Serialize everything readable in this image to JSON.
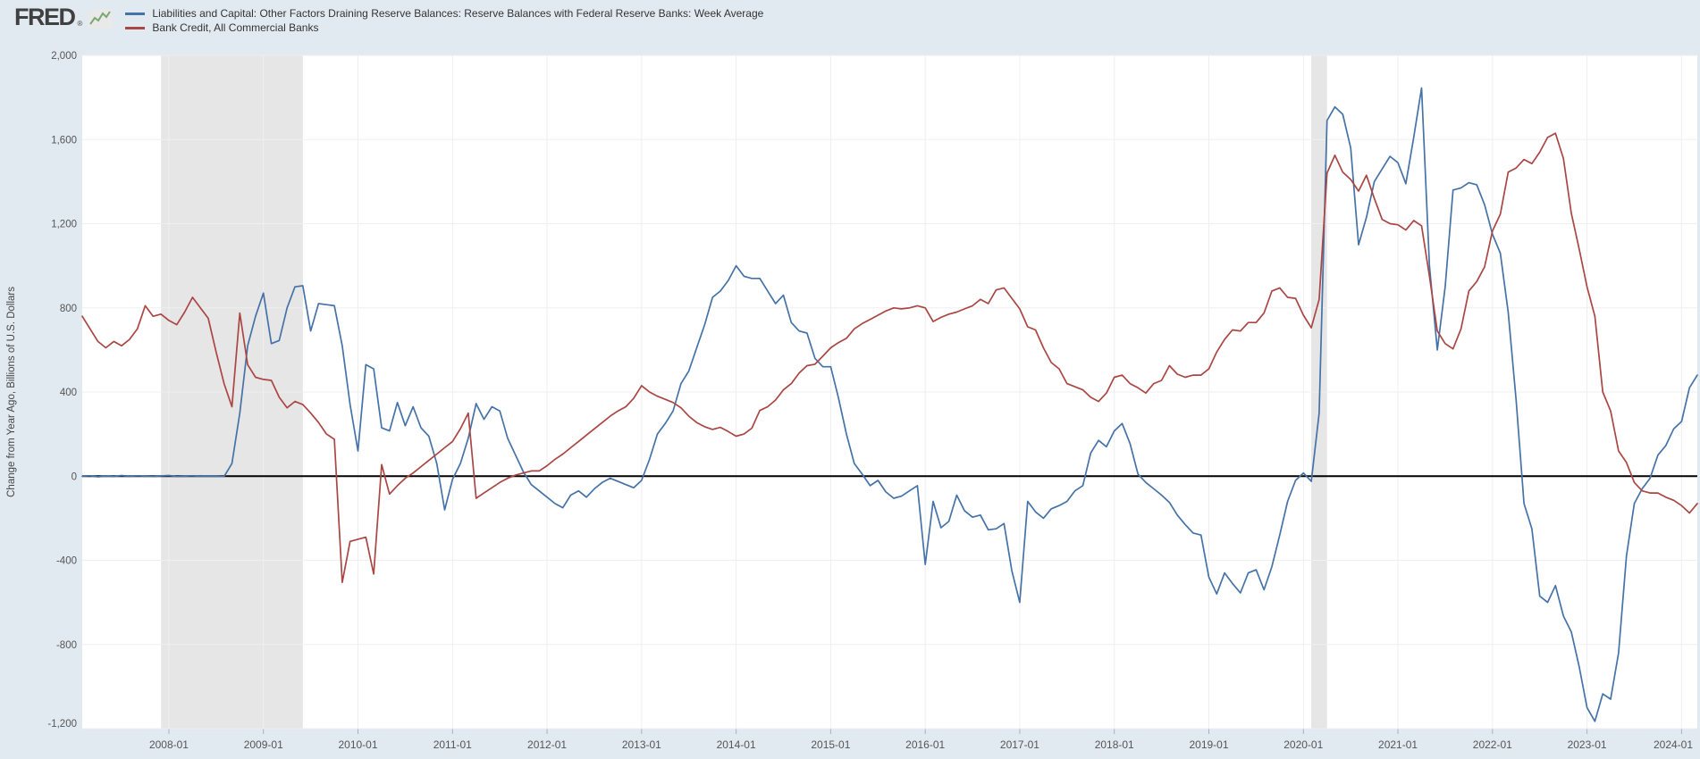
{
  "header": {
    "logo_text": "FRED",
    "registered_mark": "®"
  },
  "colors": {
    "background": "#e2eaf1",
    "plot_background": "#ffffff",
    "recession_band": "#e6e6e6",
    "gridline": "#efefef",
    "zero_line": "#000000",
    "tick_mark": "#a8b1ba",
    "tick_label": "#555555",
    "axis_title": "#444444",
    "legend_text": "#333333",
    "logo_text": "#404040",
    "sparkline_green": "#7aa874",
    "series_blue": "#4572a7",
    "series_red": "#aa4643"
  },
  "chart_data": {
    "type": "line",
    "title": "",
    "xlabel": "",
    "ylabel": "Change from Year Ago, Billions of U.S. Dollars",
    "ylim": [
      -1200,
      2000
    ],
    "grid": true,
    "legend_position": "top-left",
    "y_ticks": [
      {
        "v": 2000,
        "label": "2,000"
      },
      {
        "v": 1600,
        "label": "1,600"
      },
      {
        "v": 1200,
        "label": "1,200"
      },
      {
        "v": 800,
        "label": "800"
      },
      {
        "v": 400,
        "label": "400"
      },
      {
        "v": 0,
        "label": "0"
      },
      {
        "v": -400,
        "label": "-400"
      },
      {
        "v": -800,
        "label": "-800"
      },
      {
        "v": -1200,
        "label": "-1,200"
      }
    ],
    "x_ticks": [
      "2008-01",
      "2009-01",
      "2010-01",
      "2011-01",
      "2012-01",
      "2013-01",
      "2014-01",
      "2015-01",
      "2016-01",
      "2017-01",
      "2018-01",
      "2019-01",
      "2020-01",
      "2021-01",
      "2022-01",
      "2023-01",
      "2024-01"
    ],
    "x_start": "2007-02",
    "x_end": "2024-03",
    "x_resolution": "monthly",
    "recession_bands": [
      {
        "start": "2007-12",
        "end": "2009-06"
      },
      {
        "start": "2020-02",
        "end": "2020-04"
      }
    ],
    "series": [
      {
        "name": "Liabilities and Capital: Other Factors Draining Reserve Balances: Reserve Balances with Federal Reserve Banks: Week Average",
        "color": "#4572a7",
        "values": [
          0,
          2,
          -3,
          1,
          -2,
          3,
          -1,
          2,
          0,
          -2,
          1,
          3,
          -2,
          0,
          2,
          -1,
          1,
          0,
          -2,
          60,
          300,
          620,
          760,
          870,
          630,
          645,
          800,
          900,
          905,
          690,
          820,
          815,
          810,
          620,
          340,
          120,
          530,
          510,
          230,
          215,
          350,
          240,
          330,
          230,
          190,
          60,
          -160,
          -15,
          60,
          180,
          345,
          270,
          330,
          310,
          180,
          100,
          20,
          -40,
          -70,
          -100,
          -130,
          -150,
          -90,
          -70,
          -100,
          -60,
          -30,
          -10,
          -25,
          -40,
          -55,
          -20,
          80,
          200,
          250,
          310,
          440,
          500,
          610,
          720,
          850,
          880,
          930,
          1000,
          950,
          940,
          940,
          880,
          820,
          860,
          730,
          690,
          680,
          560,
          520,
          520,
          370,
          200,
          60,
          10,
          -45,
          -20,
          -75,
          -105,
          -95,
          -70,
          -45,
          -420,
          -120,
          -245,
          -215,
          -90,
          -165,
          -195,
          -185,
          -255,
          -250,
          -225,
          -450,
          -600,
          -120,
          -170,
          -200,
          -155,
          -140,
          -120,
          -70,
          -45,
          110,
          170,
          140,
          215,
          250,
          155,
          10,
          -30,
          -60,
          -90,
          -125,
          -185,
          -230,
          -270,
          -280,
          -480,
          -560,
          -460,
          -510,
          -555,
          -460,
          -445,
          -540,
          -430,
          -280,
          -120,
          -20,
          15,
          -25,
          300,
          1690,
          1755,
          1720,
          1560,
          1100,
          1230,
          1400,
          1460,
          1520,
          1490,
          1390,
          1610,
          1845,
          1000,
          600,
          900,
          1360,
          1370,
          1395,
          1385,
          1290,
          1150,
          1060,
          780,
          360,
          -130,
          -250,
          -570,
          -600,
          -520,
          -665,
          -740,
          -905,
          -1100,
          -1165,
          -1035,
          -1060,
          -840,
          -380,
          -130,
          -60,
          -10,
          100,
          145,
          225,
          260,
          420,
          480
        ]
      },
      {
        "name": "Bank Credit, All Commercial Banks",
        "color": "#aa4643",
        "values": [
          760,
          700,
          640,
          610,
          640,
          620,
          650,
          700,
          810,
          760,
          770,
          740,
          720,
          780,
          850,
          800,
          750,
          590,
          440,
          330,
          775,
          530,
          470,
          460,
          455,
          375,
          325,
          355,
          340,
          300,
          255,
          200,
          175,
          -505,
          -310,
          -300,
          -290,
          -465,
          55,
          -85,
          -45,
          -10,
          15,
          45,
          75,
          105,
          135,
          165,
          225,
          300,
          -105,
          -80,
          -55,
          -30,
          -10,
          5,
          15,
          25,
          25,
          50,
          80,
          105,
          135,
          165,
          195,
          225,
          255,
          285,
          310,
          330,
          370,
          430,
          400,
          380,
          365,
          350,
          325,
          285,
          255,
          235,
          222,
          232,
          212,
          190,
          200,
          228,
          312,
          330,
          362,
          410,
          440,
          490,
          525,
          532,
          570,
          610,
          635,
          655,
          700,
          725,
          745,
          765,
          785,
          800,
          795,
          800,
          810,
          800,
          735,
          755,
          770,
          780,
          795,
          810,
          840,
          820,
          885,
          895,
          845,
          795,
          710,
          695,
          610,
          540,
          510,
          440,
          425,
          410,
          375,
          355,
          395,
          470,
          480,
          440,
          420,
          395,
          440,
          455,
          525,
          485,
          470,
          480,
          480,
          510,
          590,
          650,
          695,
          690,
          730,
          730,
          775,
          880,
          895,
          850,
          845,
          765,
          705,
          840,
          1440,
          1525,
          1445,
          1410,
          1355,
          1430,
          1320,
          1220,
          1200,
          1195,
          1170,
          1215,
          1190,
          950,
          690,
          630,
          605,
          700,
          880,
          925,
          995,
          1165,
          1245,
          1445,
          1465,
          1505,
          1485,
          1540,
          1610,
          1630,
          1510,
          1250,
          1080,
          900,
          760,
          400,
          310,
          120,
          65,
          -30,
          -70,
          -80,
          -80,
          -100,
          -115,
          -140,
          -175,
          -130
        ]
      }
    ]
  }
}
